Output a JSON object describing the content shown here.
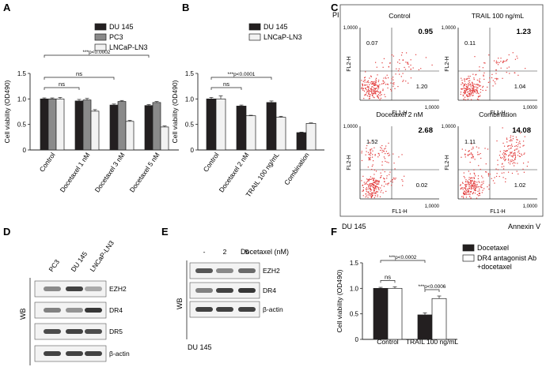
{
  "panel_labels": {
    "A": "A",
    "B": "B",
    "C": "C",
    "D": "D",
    "E": "E",
    "F": "F"
  },
  "chart_data": [
    {
      "panel": "A",
      "type": "bar",
      "ylabel": "Cell viability (OD490)",
      "ylim": [
        0,
        1.5
      ],
      "yticks": [
        "0",
        "0.5",
        "1.0",
        "1.5"
      ],
      "categories": [
        "Control",
        "Docetaxel 1 nM",
        "Docetaxel 3 nM",
        "Docetaxel 5 nM"
      ],
      "series": [
        {
          "name": "DU 145",
          "color": "#231f20",
          "values": [
            1.0,
            0.96,
            0.88,
            0.87
          ],
          "errors": [
            0.02,
            0.03,
            0.02,
            0.02
          ]
        },
        {
          "name": "PC3",
          "color": "#8a8a8a",
          "values": [
            1.0,
            0.98,
            0.95,
            0.93
          ],
          "errors": [
            0.02,
            0.03,
            0.02,
            0.02
          ]
        },
        {
          "name": "LNCaP-LN3",
          "color": "#f2f2f2",
          "values": [
            1.0,
            0.76,
            0.56,
            0.45
          ],
          "errors": [
            0.03,
            0.03,
            0.02,
            0.02
          ]
        }
      ],
      "annotations": [
        {
          "text": "***p<0.0002",
          "from": 0,
          "to": 3
        },
        {
          "text": "ns",
          "from": 0,
          "to": 2
        },
        {
          "text": "ns",
          "from": 0,
          "to": 1
        }
      ],
      "legend": "top-right"
    },
    {
      "panel": "B",
      "type": "bar",
      "ylabel": "Cell viability (OD490)",
      "ylim": [
        0,
        1.5
      ],
      "yticks": [
        "0",
        "0.5",
        "1.0",
        "1.5"
      ],
      "categories": [
        "Control",
        "Docetaxel 2 nM",
        "TRAIL 100 ng/mL",
        "Combination"
      ],
      "series": [
        {
          "name": "DU 145",
          "color": "#231f20",
          "values": [
            1.0,
            0.86,
            0.93,
            0.34
          ],
          "errors": [
            0.03,
            0.02,
            0.03,
            0.01
          ]
        },
        {
          "name": "LNCaP-LN3",
          "color": "#f2f2f2",
          "values": [
            1.0,
            0.67,
            0.64,
            0.52
          ],
          "errors": [
            0.06,
            0.01,
            0.02,
            0.01
          ]
        }
      ],
      "annotations": [
        {
          "text": "***p<0.0001",
          "from": 0,
          "to": 2
        },
        {
          "text": "ns",
          "from": 0,
          "to": 1
        }
      ],
      "legend": "top-right"
    },
    {
      "panel": "F",
      "type": "bar",
      "ylabel": "Cell viability (OD490)",
      "ylim": [
        0,
        1.5
      ],
      "yticks": [
        "0",
        "0.5",
        "1.0",
        "1.5"
      ],
      "categories": [
        "Control",
        "TRAIL 100 ng/mL"
      ],
      "series": [
        {
          "name": "Docetaxel",
          "color": "#231f20",
          "values": [
            1.0,
            0.48
          ],
          "errors": [
            0.02,
            0.04
          ]
        },
        {
          "name": "DR4 antagonist Ab +docetaxel",
          "color": "#ffffff",
          "values": [
            1.0,
            0.8
          ],
          "errors": [
            0.03,
            0.05
          ]
        }
      ],
      "annotations": [
        {
          "text": "***p<0.0002",
          "from": 0,
          "to": 1
        },
        {
          "text": "ns",
          "within": 0
        },
        {
          "text": "***p<0.0006",
          "within": 1
        }
      ],
      "legend": "top-right"
    }
  ],
  "flow": {
    "ylabel_outer": "PI",
    "xlabel_outer": "Annexin V",
    "cell_line": "DU 145",
    "xaxis": "FL1-H",
    "yaxis": "FL2-H",
    "ymax_tick": "1,0000",
    "xmax_tick": "1,0000",
    "plots": [
      {
        "title": "Control",
        "ul": "0.07",
        "ur": "0.95",
        "lr": "1.20"
      },
      {
        "title": "TRAIL 100 ng/mL",
        "ul": "0.11",
        "ur": "1.23",
        "lr": "1.04"
      },
      {
        "title": "Docetaxel 2 nM",
        "ul": "1.52",
        "ur": "2.68",
        "lr": "0.02"
      },
      {
        "title": "Combination",
        "ul": "1.11",
        "ur": "14.08",
        "lr": "1.02"
      }
    ]
  },
  "western_d": {
    "side_label": "WB",
    "lanes": [
      "PC3",
      "DU 145",
      "LNCaP-LN3"
    ],
    "rows": [
      "EZH2",
      "DR4",
      "DR5",
      "β-actin"
    ]
  },
  "western_e": {
    "side_label": "WB",
    "treatment_label": "Docetaxel (nM)",
    "lanes": [
      "-",
      "2",
      "5"
    ],
    "rows": [
      "EZH2",
      "DR4",
      "β-actin"
    ],
    "cell_line": "DU 145"
  }
}
